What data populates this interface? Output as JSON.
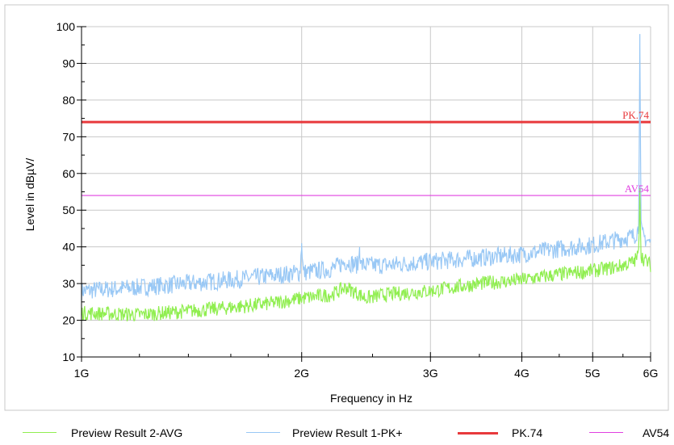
{
  "chart_data": {
    "type": "line",
    "xlabel": "Frequency in Hz",
    "ylabel": "Level in dBµV/",
    "x_scale": "log",
    "xlim": [
      1000000000,
      6000000000
    ],
    "ylim": [
      10,
      100
    ],
    "x_ticks": [
      {
        "value": 1000000000,
        "label": "1G"
      },
      {
        "value": 2000000000,
        "label": "2G"
      },
      {
        "value": 3000000000,
        "label": "3G"
      },
      {
        "value": 4000000000,
        "label": "4G"
      },
      {
        "value": 5000000000,
        "label": "5G"
      },
      {
        "value": 6000000000,
        "label": "6G"
      }
    ],
    "y_ticks": [
      10,
      20,
      30,
      40,
      50,
      60,
      70,
      80,
      90,
      100
    ],
    "grid": true,
    "legend_position": "bottom",
    "series": [
      {
        "name": "Preview Result 2-AVG",
        "color": "#90ee50",
        "x": [
          1000000000,
          1200000000,
          1400000000,
          1600000000,
          1800000000,
          2000000000,
          2200000000,
          2300000000,
          2450000000,
          2600000000,
          3000000000,
          3500000000,
          4000000000,
          4500000000,
          5000000000,
          5400000000,
          5700000000,
          5780000000,
          5800000000,
          5820000000,
          5850000000,
          6000000000
        ],
        "y": [
          22,
          21.5,
          22.5,
          23.5,
          24.5,
          26,
          27,
          29,
          26,
          27,
          28,
          30,
          31,
          32.5,
          33.5,
          34.5,
          36,
          38,
          56,
          38,
          37,
          35
        ]
      },
      {
        "name": "Preview Result 1-PK+",
        "color": "#99c8f5",
        "x": [
          1000000000,
          1200000000,
          1400000000,
          1600000000,
          1800000000,
          1990000000,
          2000000000,
          2010000000,
          2200000000,
          2300000000,
          2390000000,
          2400000000,
          2410000000,
          2600000000,
          3000000000,
          3500000000,
          4000000000,
          4500000000,
          5000000000,
          5400000000,
          5700000000,
          5780000000,
          5800000000,
          5820000000,
          5850000000,
          6000000000
        ],
        "y": [
          28,
          29,
          30,
          31,
          32,
          33,
          41,
          33,
          34,
          36,
          35,
          40,
          35,
          35,
          36,
          37,
          38,
          39.5,
          40.5,
          42,
          43,
          45,
          98,
          45,
          43,
          41
        ]
      },
      {
        "name": "PK.74",
        "color": "#e8393c",
        "x": [
          1000000000,
          6000000000
        ],
        "y": [
          74,
          74
        ]
      },
      {
        "name": "AV54",
        "color": "#e040e0",
        "x": [
          1000000000,
          6000000000
        ],
        "y": [
          54,
          54
        ]
      }
    ],
    "annotations": [
      {
        "text": "PK.74",
        "series": "PK.74",
        "color": "#e8393c"
      },
      {
        "text": "AV54",
        "series": "AV54",
        "color": "#e040e0"
      }
    ]
  }
}
